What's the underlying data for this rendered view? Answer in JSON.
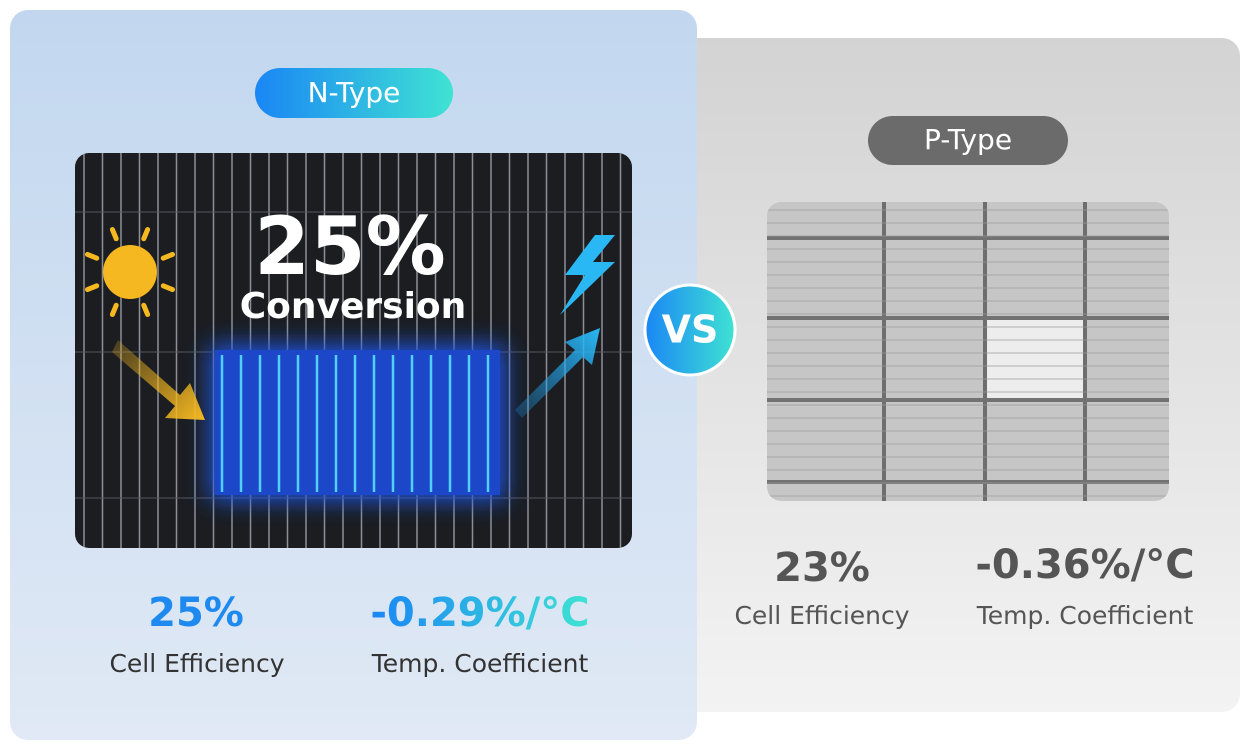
{
  "n_type": {
    "badge": "N-Type",
    "headline": "25%",
    "subheadline": "Conversion",
    "stats": [
      {
        "value": "25%",
        "label": "Cell Efficiency"
      },
      {
        "value": "-0.29%/°C",
        "label": "Temp. Coefficient"
      }
    ]
  },
  "versus": "VS",
  "p_type": {
    "badge": "P-Type",
    "stats": [
      {
        "value": "23%",
        "label": "Cell Efficiency"
      },
      {
        "value": "-0.36%/°C",
        "label": "Temp. Coefficient"
      }
    ]
  }
}
